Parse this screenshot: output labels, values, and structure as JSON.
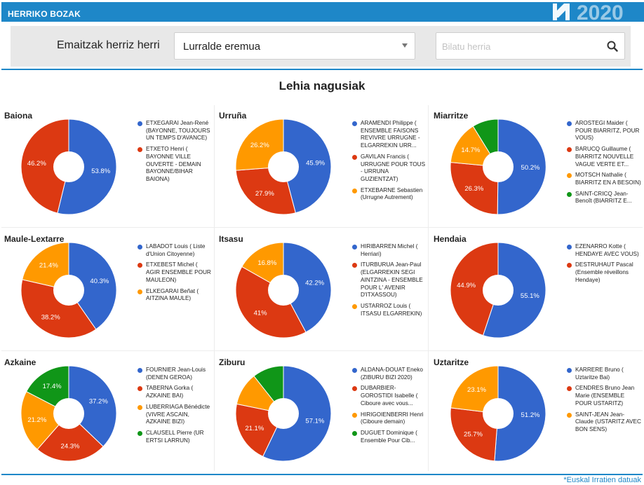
{
  "header": {
    "title": "HERRIKO BOZAK",
    "logo_text": "2020"
  },
  "filters": {
    "label": "Emaitzak herriz herri",
    "region_value": "Lurralde eremua",
    "search_placeholder": "Bilatu herria"
  },
  "section_title": "Lehia nagusiak",
  "footer": {
    "credit": "*Euskal Irratien datuak"
  },
  "colors": {
    "blue": "#3366cc",
    "red": "#dc3912",
    "orange": "#ff9900",
    "green": "#109618",
    "accent": "#1e87c8"
  },
  "chart_data": [
    {
      "type": "pie",
      "title": "Baiona",
      "slices": [
        {
          "name": "ETXEGARAI Jean-René (BAYONNE, TOUJOURS UN TEMPS D'AVANCE)",
          "value": 53.8,
          "label": "53.8%",
          "color": "#3366cc"
        },
        {
          "name": "ETXETO Henri ( BAYONNE VILLE OUVERTE - DEMAIN BAYONNE/BIHAR BAIONA)",
          "value": 46.2,
          "label": "46.2%",
          "color": "#dc3912"
        }
      ]
    },
    {
      "type": "pie",
      "title": "Urruña",
      "slices": [
        {
          "name": "ARAMENDI Philippe ( ENSEMBLE FAISONS REVIVRE URRUGNE - ELGARREKIN URR...",
          "value": 45.9,
          "label": "45.9%",
          "color": "#3366cc"
        },
        {
          "name": "GAVILAN Francis ( URRUGNE POUR TOUS - URRUNA GUZIENTZAT)",
          "value": 27.9,
          "label": "27.9%",
          "color": "#dc3912"
        },
        {
          "name": "ETXEBARNE Sebastien (Urrugne Autrement)",
          "value": 26.2,
          "label": "26.2%",
          "color": "#ff9900"
        }
      ]
    },
    {
      "type": "pie",
      "title": "Miarritze",
      "slices": [
        {
          "name": "AROSTEGI Maider ( POUR BIARRITZ, POUR VOUS)",
          "value": 50.2,
          "label": "50.2%",
          "color": "#3366cc"
        },
        {
          "name": "BARUCQ Guillaume ( BIARRITZ NOUVELLE VAGUE VERTE ET...",
          "value": 26.3,
          "label": "26.3%",
          "color": "#dc3912"
        },
        {
          "name": "MOTSCH Nathalie ( BIARRITZ EN A BESOIN)",
          "value": 14.7,
          "label": "14.7%",
          "color": "#ff9900"
        },
        {
          "name": "SAINT-CRICQ Jean-Benoît (BIARRITZ E...",
          "value": 8.8,
          "label": "",
          "color": "#109618"
        }
      ]
    },
    {
      "type": "pie",
      "title": "Maule-Lextarre",
      "slices": [
        {
          "name": "LABADOT Louis ( Liste d'Union Citoyenne)",
          "value": 40.3,
          "label": "40.3%",
          "color": "#3366cc"
        },
        {
          "name": "ETXEBEST Michel ( AGIR ENSEMBLE POUR MAULEON)",
          "value": 38.2,
          "label": "38.2%",
          "color": "#dc3912"
        },
        {
          "name": "ELKEGARAI Beñat ( AITZINA MAULE)",
          "value": 21.4,
          "label": "21.4%",
          "color": "#ff9900"
        }
      ]
    },
    {
      "type": "pie",
      "title": "Itsasu",
      "slices": [
        {
          "name": "HIRIBARREN Michel ( Herriari)",
          "value": 42.2,
          "label": "42.2%",
          "color": "#3366cc"
        },
        {
          "name": "ITURBURUA Jean-Paul (ELGARREKIN SEGI AINTZINA - ENSEMBLE POUR L' AVENIR D'ITXASSOU)",
          "value": 41,
          "label": "41%",
          "color": "#dc3912"
        },
        {
          "name": "USTARROZ Louis ( ITSASU ELGARREKIN)",
          "value": 16.8,
          "label": "16.8%",
          "color": "#ff9900"
        }
      ]
    },
    {
      "type": "pie",
      "title": "Hendaia",
      "slices": [
        {
          "name": "EZENARRO Kotte ( HENDAYE AVEC VOUS)",
          "value": 55.1,
          "label": "55.1%",
          "color": "#3366cc"
        },
        {
          "name": "DESTRUHAUT Pascal (Ensemble réveillons Hendaye)",
          "value": 44.9,
          "label": "44.9%",
          "color": "#dc3912"
        }
      ]
    },
    {
      "type": "pie",
      "title": "Azkaine",
      "slices": [
        {
          "name": "FOURNIER Jean-Louis (DENEN GEROA)",
          "value": 37.2,
          "label": "37.2%",
          "color": "#3366cc"
        },
        {
          "name": "TABERNA Gorka ( AZKAINE BAI)",
          "value": 24.3,
          "label": "24.3%",
          "color": "#dc3912"
        },
        {
          "name": "LUBERRIAGA Bénédicte (VIVRE ASCAIN, AZKAINE BIZI)",
          "value": 21.2,
          "label": "21.2%",
          "color": "#ff9900"
        },
        {
          "name": "CLAUSELL Pierre (UR ERTSI LARRUN)",
          "value": 17.4,
          "label": "17.4%",
          "color": "#109618"
        }
      ]
    },
    {
      "type": "pie",
      "title": "Ziburu",
      "slices": [
        {
          "name": "ALDANA-DOUAT Eneko (ZIBURU BIZI 2020)",
          "value": 57.1,
          "label": "57.1%",
          "color": "#3366cc"
        },
        {
          "name": "DUBARBIER-GOROSTIDI Isabelle ( Ciboure avec vous...",
          "value": 21.1,
          "label": "21.1%",
          "color": "#dc3912"
        },
        {
          "name": "HIRIGOIENBERRI Henri (Ciboure demain)",
          "value": 11.2,
          "label": "",
          "color": "#ff9900"
        },
        {
          "name": "DUGUET Dominique ( Ensemble Pour Cib...",
          "value": 10.6,
          "label": "",
          "color": "#109618"
        }
      ]
    },
    {
      "type": "pie",
      "title": "Uztaritze",
      "slices": [
        {
          "name": "KARRERE Bruno ( Uztaritze Bai)",
          "value": 51.2,
          "label": "51.2%",
          "color": "#3366cc"
        },
        {
          "name": "CENDRES Bruno Jean Marie (ENSEMBLE POUR USTARITZ)",
          "value": 25.7,
          "label": "25.7%",
          "color": "#dc3912"
        },
        {
          "name": "SAINT-JEAN Jean-Claude (USTARITZ AVEC BON SENS)",
          "value": 23.1,
          "label": "23.1%",
          "color": "#ff9900"
        }
      ]
    }
  ]
}
